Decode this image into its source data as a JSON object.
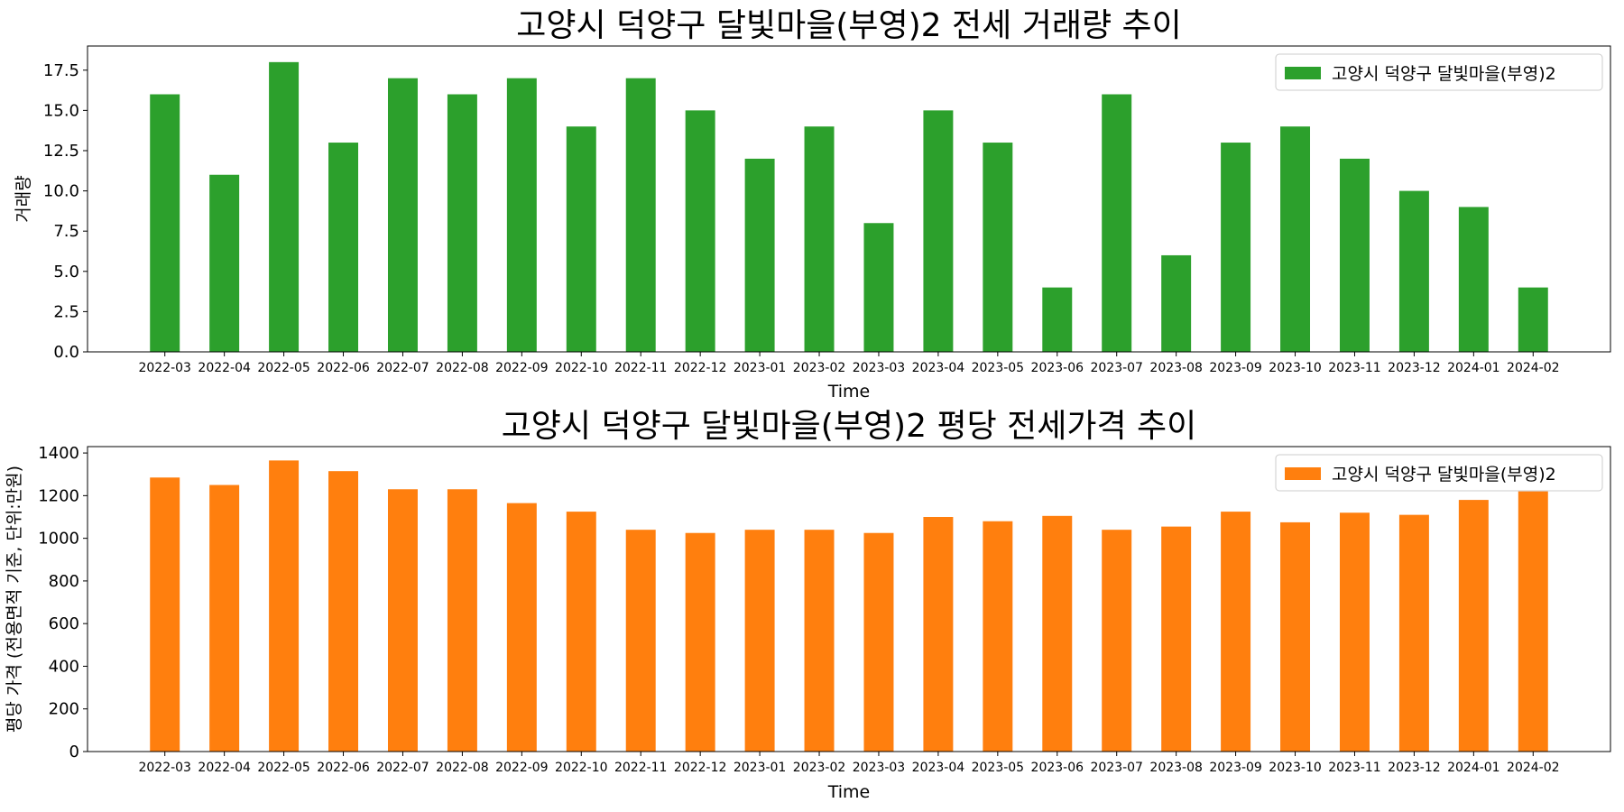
{
  "chart_data": [
    {
      "type": "bar",
      "title": "고양시 덕양구 달빛마을(부영)2 전세 거래량 추이",
      "xlabel": "Time",
      "ylabel": "거래량",
      "ylim": [
        0,
        19
      ],
      "yticks": [
        "0.0",
        "2.5",
        "5.0",
        "7.5",
        "10.0",
        "12.5",
        "15.0",
        "17.5"
      ],
      "ytick_values": [
        0,
        2.5,
        5,
        7.5,
        10,
        12.5,
        15,
        17.5
      ],
      "categories": [
        "2022-03",
        "2022-04",
        "2022-05",
        "2022-06",
        "2022-07",
        "2022-08",
        "2022-09",
        "2022-10",
        "2022-11",
        "2022-12",
        "2023-01",
        "2023-02",
        "2023-03",
        "2023-04",
        "2023-05",
        "2023-06",
        "2023-07",
        "2023-08",
        "2023-09",
        "2023-10",
        "2023-11",
        "2023-12",
        "2024-01",
        "2024-02"
      ],
      "series": [
        {
          "name": "고양시 덕양구 달빛마을(부영)2",
          "color": "#2ca02c",
          "values": [
            16,
            11,
            18,
            13,
            17,
            16,
            17,
            14,
            17,
            15,
            12,
            14,
            8,
            15,
            13,
            4,
            16,
            6,
            13,
            14,
            12,
            10,
            9,
            4
          ]
        }
      ],
      "legend": "top-right",
      "grid": false
    },
    {
      "type": "bar",
      "title": "고양시 덕양구 달빛마을(부영)2 평당 전세가격 추이",
      "xlabel": "Time",
      "ylabel": "평당 가격 (전용면적 기준, 단위:만원)",
      "ylim": [
        0,
        1430
      ],
      "yticks": [
        "0",
        "200",
        "400",
        "600",
        "800",
        "1000",
        "1200",
        "1400"
      ],
      "ytick_values": [
        0,
        200,
        400,
        600,
        800,
        1000,
        1200,
        1400
      ],
      "categories": [
        "2022-03",
        "2022-04",
        "2022-05",
        "2022-06",
        "2022-07",
        "2022-08",
        "2022-09",
        "2022-10",
        "2022-11",
        "2022-12",
        "2023-01",
        "2023-02",
        "2023-03",
        "2023-04",
        "2023-05",
        "2023-06",
        "2023-07",
        "2023-08",
        "2023-09",
        "2023-10",
        "2023-11",
        "2023-12",
        "2024-01",
        "2024-02"
      ],
      "series": [
        {
          "name": "고양시 덕양구 달빛마을(부영)2",
          "color": "#ff7f0e",
          "values": [
            1285,
            1250,
            1365,
            1315,
            1230,
            1230,
            1165,
            1125,
            1040,
            1025,
            1040,
            1040,
            1025,
            1100,
            1080,
            1105,
            1040,
            1055,
            1125,
            1075,
            1120,
            1110,
            1180,
            1220
          ]
        }
      ],
      "legend": "top-right",
      "grid": false
    }
  ]
}
